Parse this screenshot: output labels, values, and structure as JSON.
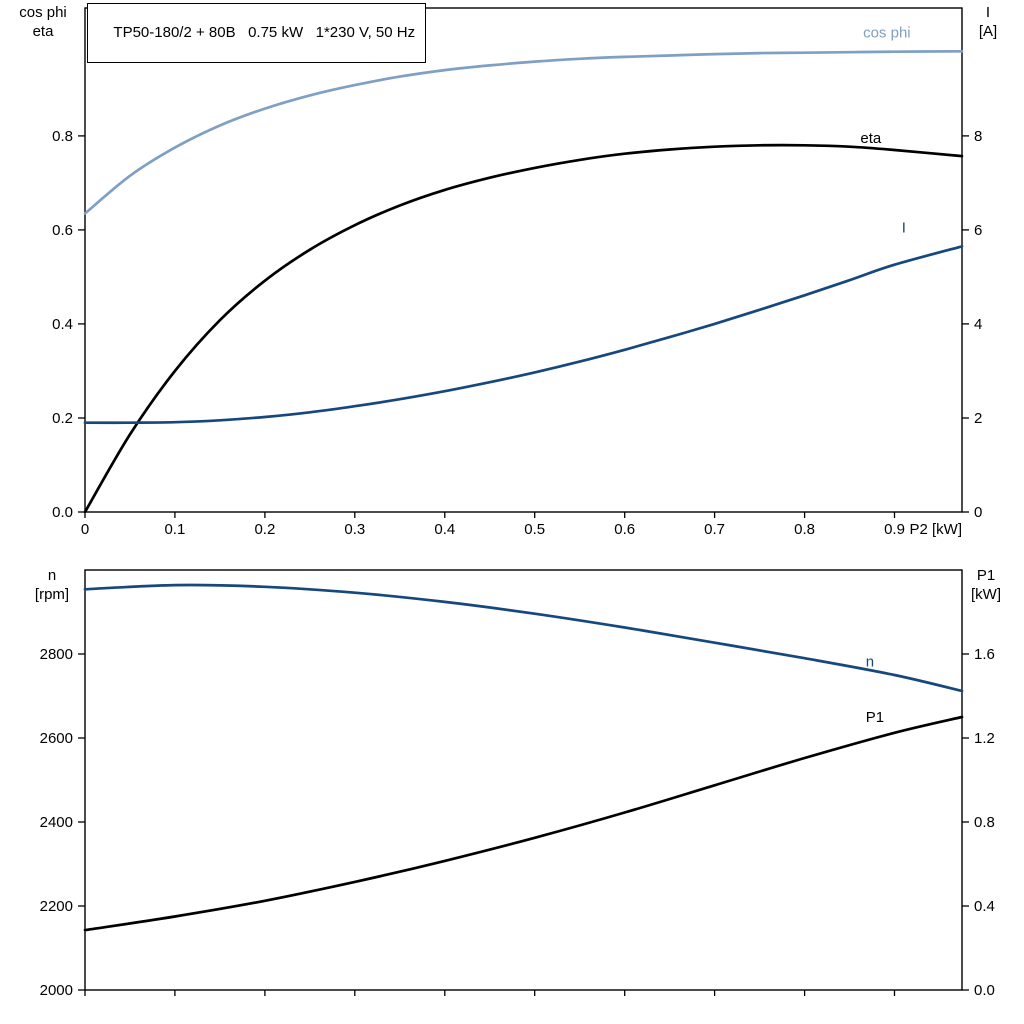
{
  "page": {
    "background": "#ffffff"
  },
  "title": "TP50-180/2 + 80B   0.75 kW   1*230 V, 50 Hz",
  "palette": {
    "cos_phi_blue": "#7f9fc4",
    "dark_blue": "#16477d",
    "black": "#000000",
    "frame": "#000000"
  },
  "chart_data": [
    {
      "id": "motor-electrical",
      "type": "line",
      "title": "TP50-180/2 + 80B   0.75 kW   1*230 V, 50 Hz",
      "x_axis": {
        "label": "P2 [kW]",
        "lim": [
          0,
          0.975
        ],
        "tick_values": [
          0,
          0.1,
          0.2,
          0.3,
          0.4,
          0.5,
          0.6,
          0.7,
          0.8,
          0.9
        ],
        "tick_labels": [
          "0",
          "0.1",
          "0.2",
          "0.3",
          "0.4",
          "0.5",
          "0.6",
          "0.7",
          "0.8",
          "0.9"
        ],
        "show_labels": true
      },
      "y_left": {
        "label_lines": [
          "cos phi",
          "eta"
        ],
        "lim": [
          0,
          1.072
        ],
        "tick_values": [
          0,
          0.2,
          0.4,
          0.6,
          0.8
        ],
        "tick_labels": [
          "0.0",
          "0.2",
          "0.4",
          "0.6",
          "0.8"
        ]
      },
      "y_right": {
        "label_lines": [
          "I",
          "[A]"
        ],
        "lim": [
          0,
          10.72
        ],
        "tick_values": [
          0,
          2,
          4,
          6,
          8
        ],
        "tick_labels": [
          "0",
          "2",
          "4",
          "6",
          "8"
        ]
      },
      "grid": false,
      "series": [
        {
          "name": "cos phi",
          "axis": "left",
          "color": "cos_phi_blue",
          "x": [
            0,
            0.05,
            0.1,
            0.15,
            0.2,
            0.25,
            0.3,
            0.35,
            0.4,
            0.45,
            0.5,
            0.55,
            0.6,
            0.65,
            0.7,
            0.75,
            0.8,
            0.85,
            0.9,
            0.975
          ],
          "y": [
            0.635,
            0.715,
            0.775,
            0.822,
            0.858,
            0.886,
            0.908,
            0.926,
            0.94,
            0.95,
            0.958,
            0.964,
            0.968,
            0.971,
            0.974,
            0.976,
            0.977,
            0.978,
            0.979,
            0.98
          ],
          "label": {
            "text": "cos phi",
            "x": 0.865,
            "y": 1.02
          }
        },
        {
          "name": "eta",
          "axis": "left",
          "color": "black",
          "x": [
            0,
            0.05,
            0.1,
            0.15,
            0.2,
            0.25,
            0.3,
            0.35,
            0.4,
            0.45,
            0.5,
            0.55,
            0.6,
            0.65,
            0.7,
            0.75,
            0.8,
            0.85,
            0.9,
            0.975
          ],
          "y": [
            0.0,
            0.165,
            0.3,
            0.408,
            0.492,
            0.558,
            0.61,
            0.652,
            0.685,
            0.711,
            0.732,
            0.749,
            0.762,
            0.771,
            0.777,
            0.78,
            0.78,
            0.777,
            0.77,
            0.757
          ],
          "label": {
            "text": "eta",
            "x": 0.862,
            "y": 0.795
          }
        },
        {
          "name": "I",
          "axis": "right",
          "color": "dark_blue",
          "x": [
            0,
            0.05,
            0.1,
            0.15,
            0.2,
            0.25,
            0.3,
            0.35,
            0.4,
            0.45,
            0.5,
            0.55,
            0.6,
            0.65,
            0.7,
            0.75,
            0.8,
            0.85,
            0.9,
            0.975
          ],
          "y": [
            1.9,
            1.9,
            1.91,
            1.95,
            2.02,
            2.12,
            2.25,
            2.4,
            2.57,
            2.76,
            2.97,
            3.2,
            3.45,
            3.72,
            4.0,
            4.3,
            4.61,
            4.93,
            5.26,
            5.65
          ],
          "label": {
            "text": "I",
            "x": 0.908,
            "y": 6.05
          }
        }
      ]
    },
    {
      "id": "speed-power",
      "type": "line",
      "x_axis": {
        "label": "",
        "lim": [
          0,
          0.975
        ],
        "tick_values": [
          0,
          0.1,
          0.2,
          0.3,
          0.4,
          0.5,
          0.6,
          0.7,
          0.8,
          0.9
        ],
        "tick_labels": [],
        "show_labels": false
      },
      "y_left": {
        "label_lines": [
          "n",
          "[rpm]"
        ],
        "lim": [
          2000,
          3000
        ],
        "tick_values": [
          2000,
          2200,
          2400,
          2600,
          2800
        ],
        "tick_labels": [
          "2000",
          "2200",
          "2400",
          "2600",
          "2800"
        ]
      },
      "y_right": {
        "label_lines": [
          "P1",
          "[kW]"
        ],
        "lim": [
          0,
          2.0
        ],
        "tick_values": [
          0,
          0.4,
          0.8,
          1.2,
          1.6
        ],
        "tick_labels": [
          "0.0",
          "0.4",
          "0.8",
          "1.2",
          "1.6"
        ]
      },
      "grid": false,
      "series": [
        {
          "name": "n",
          "axis": "left",
          "color": "dark_blue",
          "x": [
            0,
            0.1,
            0.2,
            0.3,
            0.4,
            0.5,
            0.6,
            0.7,
            0.8,
            0.9,
            0.975
          ],
          "y": [
            2954,
            2964,
            2960,
            2946,
            2924,
            2896,
            2863,
            2827,
            2790,
            2750,
            2712
          ],
          "label": {
            "text": "n",
            "x": 0.868,
            "y": 2782
          }
        },
        {
          "name": "P1",
          "axis": "right",
          "color": "black",
          "x": [
            0,
            0.1,
            0.2,
            0.3,
            0.4,
            0.5,
            0.6,
            0.7,
            0.8,
            0.9,
            0.975
          ],
          "y": [
            0.285,
            0.35,
            0.425,
            0.515,
            0.615,
            0.725,
            0.845,
            0.975,
            1.105,
            1.225,
            1.3
          ],
          "label": {
            "text": "P1",
            "x": 0.868,
            "y": 1.3
          }
        }
      ]
    }
  ]
}
